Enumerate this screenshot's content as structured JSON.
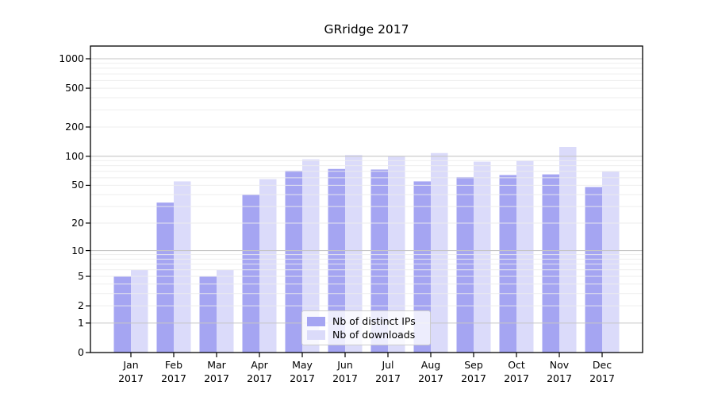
{
  "chart_data": {
    "type": "bar",
    "title": "GRridge 2017",
    "xlabel": "",
    "ylabel": "",
    "year_suffix": "2017",
    "categories": [
      "Jan",
      "Feb",
      "Mar",
      "Apr",
      "May",
      "Jun",
      "Jul",
      "Aug",
      "Sep",
      "Oct",
      "Nov",
      "Dec"
    ],
    "series": [
      {
        "name": "Nb of distinct IPs",
        "color": "#a5a5f2",
        "values": [
          5,
          33,
          5,
          40,
          71,
          74,
          73,
          55,
          61,
          64,
          65,
          48
        ]
      },
      {
        "name": "Nb of downloads",
        "color": "#dbdbfa",
        "values": [
          6,
          55,
          6,
          58,
          93,
          103,
          100,
          108,
          88,
          90,
          125,
          70
        ]
      }
    ],
    "yticks": [
      0,
      1,
      2,
      5,
      10,
      20,
      50,
      100,
      200,
      500,
      1000
    ],
    "ylim": [
      0,
      1315
    ],
    "yscale": "log10(1+y)",
    "grid": "horizontal",
    "legend_position": "lower-center-right"
  },
  "legend": {
    "items": [
      {
        "label": "Nb of distinct IPs",
        "color": "#a5a5f2"
      },
      {
        "label": "Nb of downloads",
        "color": "#dbdbfa"
      }
    ]
  },
  "colors": {
    "background": "#ffffff",
    "frame": "#000000",
    "major_gridline": "#c6c6c6",
    "minor_gridline": "#ececec",
    "text": "#000000",
    "legend_border": "#cccccc"
  }
}
